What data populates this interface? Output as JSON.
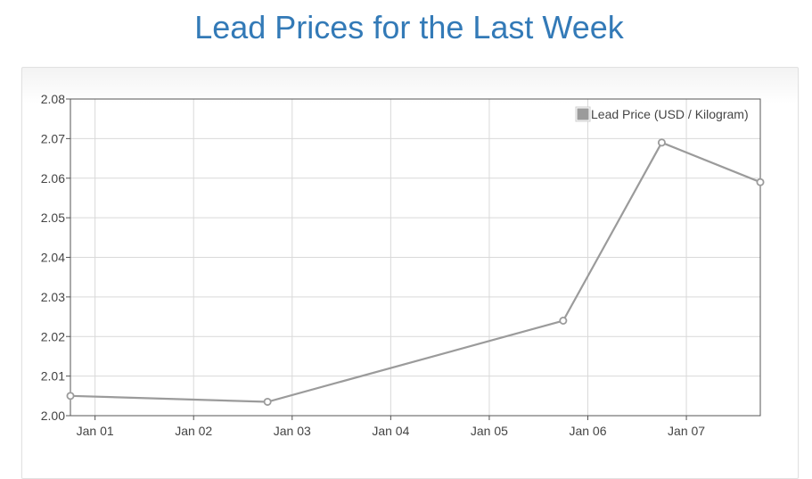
{
  "page": {
    "title": "Lead Prices for the Last Week"
  },
  "colors": {
    "title": "#337ab7",
    "series": "#9b9b9b",
    "grid": "#d9d9d9",
    "axis": "#555555"
  },
  "chart_data": {
    "type": "line",
    "title": "Lead Prices for the Last Week",
    "xlabel": "",
    "ylabel": "",
    "ylim": [
      2.0,
      2.08
    ],
    "yticks": [
      "2.00",
      "2.01",
      "2.02",
      "2.03",
      "2.04",
      "2.05",
      "2.06",
      "2.07",
      "2.08"
    ],
    "xticks": [
      "Jan 01",
      "Jan 02",
      "Jan 03",
      "Jan 04",
      "Jan 05",
      "Jan 06",
      "Jan 07"
    ],
    "grid": true,
    "legend_position": "top-right",
    "series": [
      {
        "name": "Lead Price (USD / Kilogram)",
        "points": [
          {
            "x": "Dec 31 18:00",
            "y": 2.005
          },
          {
            "x": "Jan 02 18:00",
            "y": 2.0035
          },
          {
            "x": "Jan 05 18:00",
            "y": 2.024
          },
          {
            "x": "Jan 06 18:00",
            "y": 2.069
          },
          {
            "x": "Jan 07 18:00",
            "y": 2.059
          }
        ]
      }
    ]
  }
}
